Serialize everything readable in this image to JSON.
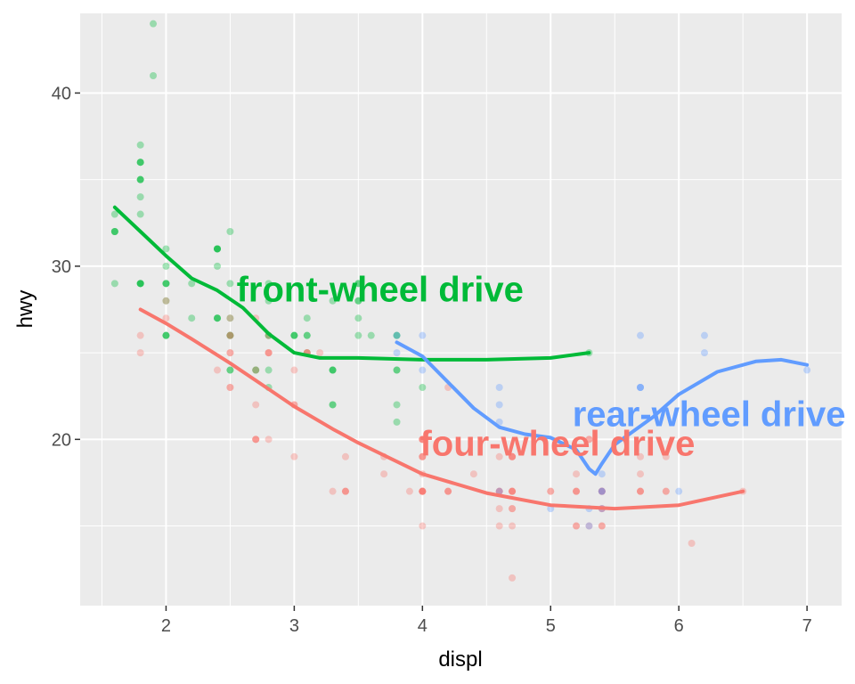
{
  "chart_data": {
    "type": "scatter",
    "xlabel": "displ",
    "ylabel": "hwy",
    "xlim": [
      1.33,
      7.27
    ],
    "ylim": [
      10.4,
      44.6
    ],
    "x_ticks": [
      2,
      3,
      4,
      5,
      6,
      7
    ],
    "x_tick_labels": [
      "2",
      "3",
      "4",
      "5",
      "6",
      "7"
    ],
    "y_ticks": [
      20,
      30,
      40
    ],
    "y_tick_labels": [
      "20",
      "30",
      "40"
    ],
    "grid": true,
    "legend": "none",
    "colors": {
      "panel": "#ebebeb",
      "grid": "#ffffff",
      "f": "#00ba38",
      "4": "#f8766d",
      "r": "#619cff"
    },
    "series": [
      {
        "key": "f",
        "points": [
          [
            1.8,
            29
          ],
          [
            1.8,
            29
          ],
          [
            2.0,
            31
          ],
          [
            2.0,
            30
          ],
          [
            2.8,
            26
          ],
          [
            2.8,
            26
          ],
          [
            3.1,
            27
          ],
          [
            2.4,
            30
          ],
          [
            2.4,
            27
          ],
          [
            3.1,
            26
          ],
          [
            3.5,
            29
          ],
          [
            3.6,
            26
          ],
          [
            2.4,
            27
          ],
          [
            3.0,
            26
          ],
          [
            3.3,
            24
          ],
          [
            3.3,
            24
          ],
          [
            3.3,
            22
          ],
          [
            3.3,
            22
          ],
          [
            3.3,
            24
          ],
          [
            3.8,
            24
          ],
          [
            3.8,
            24
          ],
          [
            3.8,
            21
          ],
          [
            3.8,
            22
          ],
          [
            4.0,
            23
          ],
          [
            5.3,
            25
          ],
          [
            1.8,
            36
          ],
          [
            1.8,
            37
          ],
          [
            1.6,
            33
          ],
          [
            1.6,
            32
          ],
          [
            1.6,
            32
          ],
          [
            1.6,
            29
          ],
          [
            1.6,
            32
          ],
          [
            1.8,
            34
          ],
          [
            1.8,
            36
          ],
          [
            1.8,
            36
          ],
          [
            2.0,
            29
          ],
          [
            2.4,
            31
          ],
          [
            2.4,
            31
          ],
          [
            2.4,
            27
          ],
          [
            2.5,
            27
          ],
          [
            2.5,
            24
          ],
          [
            2.5,
            26
          ],
          [
            3.3,
            28
          ],
          [
            1.8,
            29
          ],
          [
            1.8,
            29
          ],
          [
            2.0,
            29
          ],
          [
            2.0,
            29
          ],
          [
            2.8,
            28
          ],
          [
            2.8,
            29
          ],
          [
            2.5,
            26
          ],
          [
            2.5,
            26
          ],
          [
            2.5,
            24
          ],
          [
            3.5,
            26
          ],
          [
            3.5,
            28
          ],
          [
            2.2,
            29
          ],
          [
            2.2,
            27
          ],
          [
            2.4,
            31
          ],
          [
            2.4,
            31
          ],
          [
            3.0,
            26
          ],
          [
            3.0,
            26
          ],
          [
            3.5,
            27
          ],
          [
            1.8,
            35
          ],
          [
            1.8,
            35
          ],
          [
            1.8,
            33
          ],
          [
            1.8,
            35
          ],
          [
            1.9,
            44
          ],
          [
            1.9,
            41
          ],
          [
            2.0,
            26
          ],
          [
            2.0,
            26
          ],
          [
            2.5,
            32
          ],
          [
            2.5,
            29
          ],
          [
            2.8,
            23
          ],
          [
            2.8,
            24
          ],
          [
            2.0,
            28
          ],
          [
            2.0,
            26
          ],
          [
            2.7,
            24
          ],
          [
            2.7,
            24
          ],
          [
            3.8,
            26
          ],
          [
            3.8,
            26
          ],
          [
            3.1,
            25
          ],
          [
            3.1,
            26
          ],
          [
            3.5,
            29
          ],
          [
            3.5,
            28
          ]
        ],
        "smooth": [
          [
            1.6,
            33.4
          ],
          [
            1.8,
            32.0
          ],
          [
            2.0,
            30.6
          ],
          [
            2.2,
            29.3
          ],
          [
            2.4,
            28.6
          ],
          [
            2.6,
            27.6
          ],
          [
            2.8,
            26.1
          ],
          [
            3.0,
            25.0
          ],
          [
            3.2,
            24.7
          ],
          [
            3.5,
            24.7
          ],
          [
            4.0,
            24.6
          ],
          [
            4.5,
            24.6
          ],
          [
            5.0,
            24.7
          ],
          [
            5.3,
            25.0
          ]
        ]
      },
      {
        "key": "4",
        "points": [
          [
            1.8,
            26
          ],
          [
            1.8,
            25
          ],
          [
            2.0,
            28
          ],
          [
            2.0,
            27
          ],
          [
            2.8,
            25
          ],
          [
            2.8,
            25
          ],
          [
            3.1,
            25
          ],
          [
            3.1,
            25
          ],
          [
            2.8,
            25
          ],
          [
            3.1,
            25
          ],
          [
            4.2,
            23
          ],
          [
            5.3,
            20
          ],
          [
            5.3,
            15
          ],
          [
            5.3,
            20
          ],
          [
            5.7,
            17
          ],
          [
            6.5,
            17
          ],
          [
            4.7,
            19
          ],
          [
            4.7,
            19
          ],
          [
            4.7,
            12
          ],
          [
            5.2,
            17
          ],
          [
            5.2,
            17
          ],
          [
            5.7,
            17
          ],
          [
            5.9,
            17
          ],
          [
            4.7,
            17
          ],
          [
            4.7,
            17
          ],
          [
            4.7,
            16
          ],
          [
            5.2,
            18
          ],
          [
            5.7,
            17
          ],
          [
            5.9,
            19
          ],
          [
            4.6,
            17
          ],
          [
            5.4,
            17
          ],
          [
            5.4,
            16
          ],
          [
            4.0,
            17
          ],
          [
            4.0,
            17
          ],
          [
            4.0,
            19
          ],
          [
            4.0,
            17
          ],
          [
            4.6,
            19
          ],
          [
            5.0,
            17
          ],
          [
            4.2,
            17
          ],
          [
            4.2,
            17
          ],
          [
            4.6,
            17
          ],
          [
            4.6,
            17
          ],
          [
            4.6,
            16
          ],
          [
            5.4,
            17
          ],
          [
            5.4,
            15
          ],
          [
            5.4,
            17
          ],
          [
            4.0,
            17
          ],
          [
            4.0,
            17
          ],
          [
            4.0,
            18
          ],
          [
            4.0,
            17
          ],
          [
            4.0,
            19
          ],
          [
            4.0,
            20
          ],
          [
            4.7,
            19
          ],
          [
            4.7,
            15
          ],
          [
            4.7,
            17
          ],
          [
            5.7,
            19
          ],
          [
            6.1,
            14
          ],
          [
            4.0,
            15
          ],
          [
            4.2,
            17
          ],
          [
            4.4,
            18
          ],
          [
            4.6,
            15
          ],
          [
            5.4,
            17
          ],
          [
            5.4,
            15
          ],
          [
            5.4,
            17
          ],
          [
            5.4,
            16
          ],
          [
            2.5,
            23
          ],
          [
            2.5,
            25
          ],
          [
            2.5,
            26
          ],
          [
            2.5,
            26
          ],
          [
            2.5,
            27
          ],
          [
            2.5,
            25
          ],
          [
            2.5,
            23
          ],
          [
            2.7,
            20
          ],
          [
            2.7,
            20
          ],
          [
            3.4,
            17
          ],
          [
            3.4,
            19
          ],
          [
            4.0,
            20
          ],
          [
            4.0,
            20
          ],
          [
            2.7,
            22
          ],
          [
            2.7,
            20
          ],
          [
            3.4,
            17
          ],
          [
            3.4,
            17
          ],
          [
            4.0,
            19
          ],
          [
            4.7,
            17
          ],
          [
            5.7,
            18
          ],
          [
            5.0,
            17
          ],
          [
            5.2,
            17
          ],
          [
            3.7,
            19
          ],
          [
            3.7,
            18
          ],
          [
            3.9,
            17
          ],
          [
            4.7,
            16
          ],
          [
            4.7,
            19
          ],
          [
            5.2,
            15
          ],
          [
            5.2,
            15
          ],
          [
            5.9,
            17
          ],
          [
            3.3,
            17
          ],
          [
            3.0,
            19
          ],
          [
            3.0,
            22
          ],
          [
            3.0,
            22
          ],
          [
            4.0,
            20
          ],
          [
            2.8,
            20
          ],
          [
            2.7,
            24
          ],
          [
            3.0,
            24
          ],
          [
            2.8,
            26
          ],
          [
            2.7,
            27
          ],
          [
            2.4,
            24
          ],
          [
            3.2,
            25
          ]
        ],
        "smooth": [
          [
            1.8,
            27.5
          ],
          [
            2.0,
            26.7
          ],
          [
            2.2,
            25.8
          ],
          [
            2.5,
            24.4
          ],
          [
            2.8,
            22.9
          ],
          [
            3.0,
            21.9
          ],
          [
            3.3,
            20.6
          ],
          [
            3.5,
            19.8
          ],
          [
            4.0,
            18.0
          ],
          [
            4.5,
            16.9
          ],
          [
            5.0,
            16.2
          ],
          [
            5.5,
            16.0
          ],
          [
            6.0,
            16.2
          ],
          [
            6.5,
            17.0
          ]
        ]
      },
      {
        "key": "r",
        "points": [
          [
            5.7,
            23
          ],
          [
            5.7,
            26
          ],
          [
            6.2,
            26
          ],
          [
            6.2,
            25
          ],
          [
            7.0,
            24
          ],
          [
            5.3,
            16
          ],
          [
            5.3,
            15
          ],
          [
            5.7,
            23
          ],
          [
            6.0,
            17
          ],
          [
            5.7,
            23
          ],
          [
            5.4,
            18
          ],
          [
            4.6,
            23
          ],
          [
            5.4,
            16
          ],
          [
            4.6,
            22
          ],
          [
            5.4,
            17
          ],
          [
            5.4,
            17
          ],
          [
            3.8,
            26
          ],
          [
            3.8,
            25
          ],
          [
            4.0,
            26
          ],
          [
            4.0,
            24
          ],
          [
            4.6,
            21
          ],
          [
            5.0,
            16
          ],
          [
            4.6,
            17
          ]
        ],
        "smooth": [
          [
            3.8,
            25.6
          ],
          [
            4.0,
            24.8
          ],
          [
            4.2,
            23.3
          ],
          [
            4.4,
            21.8
          ],
          [
            4.6,
            20.7
          ],
          [
            4.8,
            20.3
          ],
          [
            5.0,
            20.1
          ],
          [
            5.2,
            19.4
          ],
          [
            5.3,
            18.3
          ],
          [
            5.35,
            18.0
          ],
          [
            5.4,
            18.6
          ],
          [
            5.5,
            19.7
          ],
          [
            5.8,
            21.3
          ],
          [
            6.0,
            22.6
          ],
          [
            6.3,
            23.9
          ],
          [
            6.6,
            24.5
          ],
          [
            6.8,
            24.6
          ],
          [
            7.0,
            24.3
          ]
        ]
      }
    ],
    "annotations": [
      {
        "key": "f",
        "text": "front-wheel drive",
        "x": 2.55,
        "y": 28.5
      },
      {
        "key": "r",
        "text": "rear-wheel drive",
        "x": 5.17,
        "y": 21.3
      },
      {
        "key": "4",
        "text": "four-wheel drive",
        "x": 3.98,
        "y": 19.6
      }
    ]
  }
}
